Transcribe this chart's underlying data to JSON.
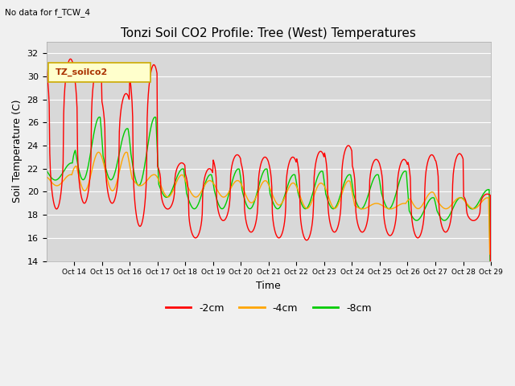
{
  "title": "Tonzi Soil CO2 Profile: Tree (West) Temperatures",
  "subtitle": "No data for f_TCW_4",
  "ylabel": "Soil Temperature (C)",
  "xlabel": "Time",
  "ylim": [
    14,
    33
  ],
  "yticks": [
    14,
    16,
    18,
    20,
    22,
    24,
    26,
    28,
    30,
    32
  ],
  "x_tick_labels": [
    "Oct 14",
    "Oct 15",
    "Oct 16",
    "Oct 17",
    "Oct 18",
    "Oct 19",
    "Oct 20",
    "Oct 21",
    "Oct 22",
    "Oct 23",
    "Oct 24",
    "Oct 25",
    "Oct 26",
    "Oct 27",
    "Oct 28",
    "Oct 29"
  ],
  "legend_label": "TZ_soilco2",
  "series_labels": [
    "-2cm",
    "-4cm",
    "-8cm"
  ],
  "series_colors": [
    "#ff0000",
    "#ffa500",
    "#00cc00"
  ],
  "fig_bg_color": "#f0f0f0",
  "plot_bg_color": "#d8d8d8",
  "grid_color": "#ffffff",
  "title_fontsize": 11,
  "axis_fontsize": 9,
  "tick_fontsize": 8
}
